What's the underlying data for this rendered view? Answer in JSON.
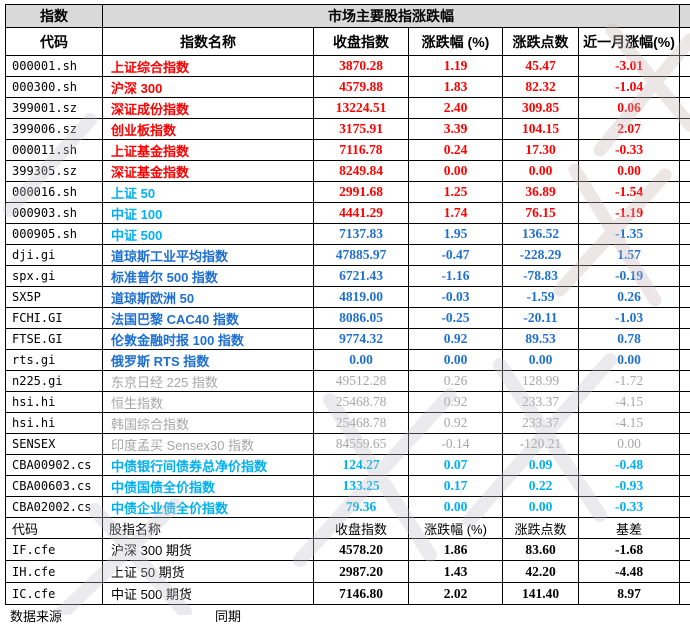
{
  "colors": {
    "red": "#FF0000",
    "cyan": "#00B0F0",
    "blue": "#1E6FD2",
    "gray": "#A6A6A6",
    "black": "#000000",
    "header_bg": "#D9D9D9",
    "border": "#000000"
  },
  "table": {
    "corner_header": {
      "line1": "指数",
      "line2": "代码"
    },
    "title": "市场主要股指涨跌幅",
    "columns": [
      "指数名称",
      "收盘指数",
      "涨跌幅 (%)",
      "涨跌点数",
      "近一月涨幅(%)"
    ],
    "rows": [
      {
        "code": "000001.sh",
        "name": "上证综合指数",
        "close": "3870.28",
        "pct": "1.19",
        "points": "45.47",
        "month": "-3.01",
        "name_color": "red",
        "value_color": "red"
      },
      {
        "code": "000300.sh",
        "name": "沪深 300",
        "close": "4579.88",
        "pct": "1.83",
        "points": "82.32",
        "month": "-1.04",
        "name_color": "red",
        "value_color": "red"
      },
      {
        "code": "399001.sz",
        "name": "深证成份指数",
        "close": "13224.51",
        "pct": "2.40",
        "points": "309.85",
        "month": "0.06",
        "name_color": "red",
        "value_color": "red"
      },
      {
        "code": "399006.sz",
        "name": "创业板指数",
        "close": "3175.91",
        "pct": "3.39",
        "points": "104.15",
        "month": "2.07",
        "name_color": "red",
        "value_color": "red"
      },
      {
        "code": "000011.sh",
        "name": "上证基金指数",
        "close": "7116.78",
        "pct": "0.24",
        "points": "17.30",
        "month": "-0.33",
        "name_color": "red",
        "value_color": "red"
      },
      {
        "code": "399305.sz",
        "name": "深证基金指数",
        "close": "8249.84",
        "pct": "0.00",
        "points": "0.00",
        "month": "0.00",
        "name_color": "red",
        "value_color": "red"
      },
      {
        "code": "000016.sh",
        "name": "上证 50",
        "close": "2991.68",
        "pct": "1.25",
        "points": "36.89",
        "month": "-1.54",
        "name_color": "cyan",
        "value_color": "red"
      },
      {
        "code": "000903.sh",
        "name": "中证 100",
        "close": "4441.29",
        "pct": "1.74",
        "points": "76.15",
        "month": "-1.19",
        "name_color": "cyan",
        "value_color": "red"
      },
      {
        "code": "000905.sh",
        "name": "中证 500",
        "close": "7137.83",
        "pct": "1.95",
        "points": "136.52",
        "month": "-1.35",
        "name_color": "cyan",
        "value_color": "blue"
      },
      {
        "code": "dji.gi",
        "name": "道琼斯工业平均指数",
        "close": "47885.97",
        "pct": "-0.47",
        "points": "-228.29",
        "month": "1.57",
        "name_color": "blue",
        "value_color": "blue"
      },
      {
        "code": "spx.gi",
        "name": "标准普尔 500 指数",
        "close": "6721.43",
        "pct": "-1.16",
        "points": "-78.83",
        "month": "-0.19",
        "name_color": "blue",
        "value_color": "blue"
      },
      {
        "code": "SX5P",
        "name": "道琼斯欧洲 50",
        "close": "4819.00",
        "pct": "-0.03",
        "points": "-1.59",
        "month": "0.26",
        "name_color": "blue",
        "value_color": "blue"
      },
      {
        "code": "FCHI.GI",
        "name": "法国巴黎 CAC40 指数",
        "close": "8086.05",
        "pct": "-0.25",
        "points": "-20.11",
        "month": "-1.03",
        "name_color": "blue",
        "value_color": "blue"
      },
      {
        "code": "FTSE.GI",
        "name": "伦敦金融时报 100 指数",
        "close": "9774.32",
        "pct": "0.92",
        "points": "89.53",
        "month": "0.78",
        "name_color": "blue",
        "value_color": "blue"
      },
      {
        "code": "rts.gi",
        "name": "俄罗斯 RTS 指数",
        "close": "0.00",
        "pct": "0.00",
        "points": "0.00",
        "month": "0.00",
        "name_color": "blue",
        "value_color": "blue"
      },
      {
        "code": "n225.gi",
        "name": "东京日经 225 指数",
        "close": "49512.28",
        "pct": "0.26",
        "points": "128.99",
        "month": "-1.72",
        "name_color": "gray",
        "value_color": "gray"
      },
      {
        "code": "hsi.hi",
        "name": "恒生指数",
        "close": "25468.78",
        "pct": "0.92",
        "points": "233.37",
        "month": "-4.15",
        "name_color": "gray",
        "value_color": "gray"
      },
      {
        "code": "hsi.hi",
        "name": "韩国综合指数",
        "close": "25468.78",
        "pct": "0.92",
        "points": "233.37",
        "month": "-4.15",
        "name_color": "gray",
        "value_color": "gray"
      },
      {
        "code": "SENSEX",
        "name": "印度孟买 Sensex30 指数",
        "close": "84559.65",
        "pct": "-0.14",
        "points": "-120.21",
        "month": "0.00",
        "name_color": "gray",
        "value_color": "gray"
      },
      {
        "code": "CBA00902.cs",
        "name": "中债银行间债券总净价指数",
        "close": "124.27",
        "pct": "0.07",
        "points": "0.09",
        "month": "-0.48",
        "name_color": "cyan",
        "value_color": "cyan"
      },
      {
        "code": "CBA00603.cs",
        "name": "中债国债全价指数",
        "close": "133.25",
        "pct": "0.17",
        "points": "0.22",
        "month": "-0.93",
        "name_color": "cyan",
        "value_color": "cyan"
      },
      {
        "code": "CBA02002.cs",
        "name": "中债企业债全价指数",
        "close": "79.36",
        "pct": "0.00",
        "points": "0.00",
        "month": "-0.33",
        "name_color": "cyan",
        "value_color": "cyan"
      }
    ],
    "futures_header": {
      "code": "代码",
      "name": "股指名称",
      "close": "收盘指数",
      "pct": "涨跌幅 (%)",
      "points": "涨跌点数",
      "basis": "基差"
    },
    "futures_rows": [
      {
        "code": "IF.cfe",
        "name": "沪深 300 期货",
        "close": "4578.20",
        "pct": "1.86",
        "points": "83.60",
        "basis": "-1.68"
      },
      {
        "code": "IH.cfe",
        "name": "上证 50 期货",
        "close": "2987.20",
        "pct": "1.43",
        "points": "42.20",
        "basis": "-4.48"
      },
      {
        "code": "IC.cfe",
        "name": "中证 500 期货",
        "close": "7146.80",
        "pct": "2.02",
        "points": "141.40",
        "basis": "8.97"
      }
    ]
  },
  "footer": {
    "left": "数据来源",
    "mid": "同期"
  }
}
